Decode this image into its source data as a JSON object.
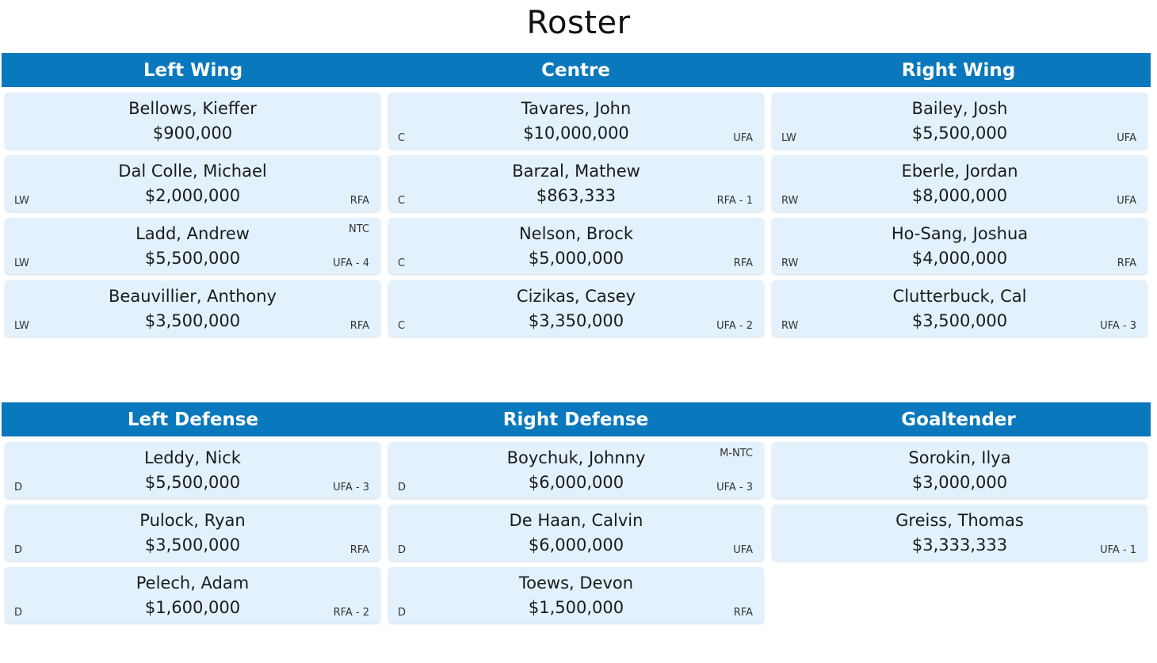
{
  "title": "Roster",
  "sections": [
    {
      "columns": [
        {
          "header": "Left Wing",
          "players": [
            {
              "name": "Bellows, Kieffer",
              "salary": "$900,000",
              "pos": "",
              "status": "",
              "clause": ""
            },
            {
              "name": "Dal Colle, Michael",
              "salary": "$2,000,000",
              "pos": "LW",
              "status": "RFA",
              "clause": ""
            },
            {
              "name": "Ladd, Andrew",
              "salary": "$5,500,000",
              "pos": "LW",
              "status": "UFA - 4",
              "clause": "NTC"
            },
            {
              "name": "Beauvillier, Anthony",
              "salary": "$3,500,000",
              "pos": "LW",
              "status": "RFA",
              "clause": ""
            }
          ]
        },
        {
          "header": "Centre",
          "players": [
            {
              "name": "Tavares, John",
              "salary": "$10,000,000",
              "pos": "C",
              "status": "UFA",
              "clause": ""
            },
            {
              "name": "Barzal, Mathew",
              "salary": "$863,333",
              "pos": "C",
              "status": "RFA - 1",
              "clause": ""
            },
            {
              "name": "Nelson, Brock",
              "salary": "$5,000,000",
              "pos": "C",
              "status": "RFA",
              "clause": ""
            },
            {
              "name": "Cizikas, Casey",
              "salary": "$3,350,000",
              "pos": "C",
              "status": "UFA - 2",
              "clause": ""
            }
          ]
        },
        {
          "header": "Right Wing",
          "players": [
            {
              "name": "Bailey, Josh",
              "salary": "$5,500,000",
              "pos": "LW",
              "status": "UFA",
              "clause": ""
            },
            {
              "name": "Eberle, Jordan",
              "salary": "$8,000,000",
              "pos": "RW",
              "status": "UFA",
              "clause": ""
            },
            {
              "name": "Ho-Sang, Joshua",
              "salary": "$4,000,000",
              "pos": "RW",
              "status": "RFA",
              "clause": ""
            },
            {
              "name": "Clutterbuck, Cal",
              "salary": "$3,500,000",
              "pos": "RW",
              "status": "UFA - 3",
              "clause": ""
            }
          ]
        }
      ]
    },
    {
      "columns": [
        {
          "header": "Left Defense",
          "players": [
            {
              "name": "Leddy, Nick",
              "salary": "$5,500,000",
              "pos": "D",
              "status": "UFA - 3",
              "clause": ""
            },
            {
              "name": "Pulock, Ryan",
              "salary": "$3,500,000",
              "pos": "D",
              "status": "RFA",
              "clause": ""
            },
            {
              "name": "Pelech, Adam",
              "salary": "$1,600,000",
              "pos": "D",
              "status": "RFA - 2",
              "clause": ""
            }
          ]
        },
        {
          "header": "Right Defense",
          "players": [
            {
              "name": "Boychuk, Johnny",
              "salary": "$6,000,000",
              "pos": "D",
              "status": "UFA - 3",
              "clause": "M-NTC"
            },
            {
              "name": "De Haan, Calvin",
              "salary": "$6,000,000",
              "pos": "D",
              "status": "UFA",
              "clause": ""
            },
            {
              "name": "Toews, Devon",
              "salary": "$1,500,000",
              "pos": "D",
              "status": "RFA",
              "clause": ""
            }
          ]
        },
        {
          "header": "Goaltender",
          "players": [
            {
              "name": "Sorokin, Ilya",
              "salary": "$3,000,000",
              "pos": "",
              "status": "",
              "clause": ""
            },
            {
              "name": "Greiss, Thomas",
              "salary": "$3,333,333",
              "pos": "",
              "status": "UFA - 1",
              "clause": ""
            }
          ]
        }
      ]
    }
  ]
}
